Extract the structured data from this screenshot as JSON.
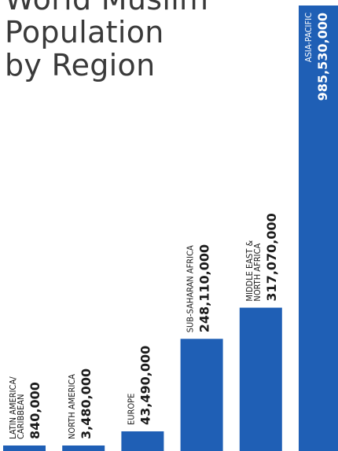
{
  "title": "World Muslim\nPopulation\nby Region",
  "colors": {
    "bar": "#1f5fb5",
    "text": "#1a1a1a",
    "inner_text": "#ffffff"
  },
  "chart_data": {
    "type": "bar",
    "title": "World Muslim Population by Region",
    "categories": [
      "LATIN AMERICA/\nCARIBBEAN",
      "NORTH AMERICA",
      "EUROPE",
      "SUB-SAHARAN AFRICA",
      "MIDDLE EAST &\nNORTH AFRICA",
      "ASIA-PACIFIC"
    ],
    "values": [
      840000,
      3480000,
      43490000,
      248110000,
      317070000,
      985530000
    ],
    "value_labels": [
      "840,000",
      "3,480,000",
      "43,490,000",
      "248,110,000",
      "317,070,000",
      "985,530,000"
    ],
    "ylim": [
      0,
      1000000000
    ],
    "grid": false,
    "legend": "none"
  }
}
